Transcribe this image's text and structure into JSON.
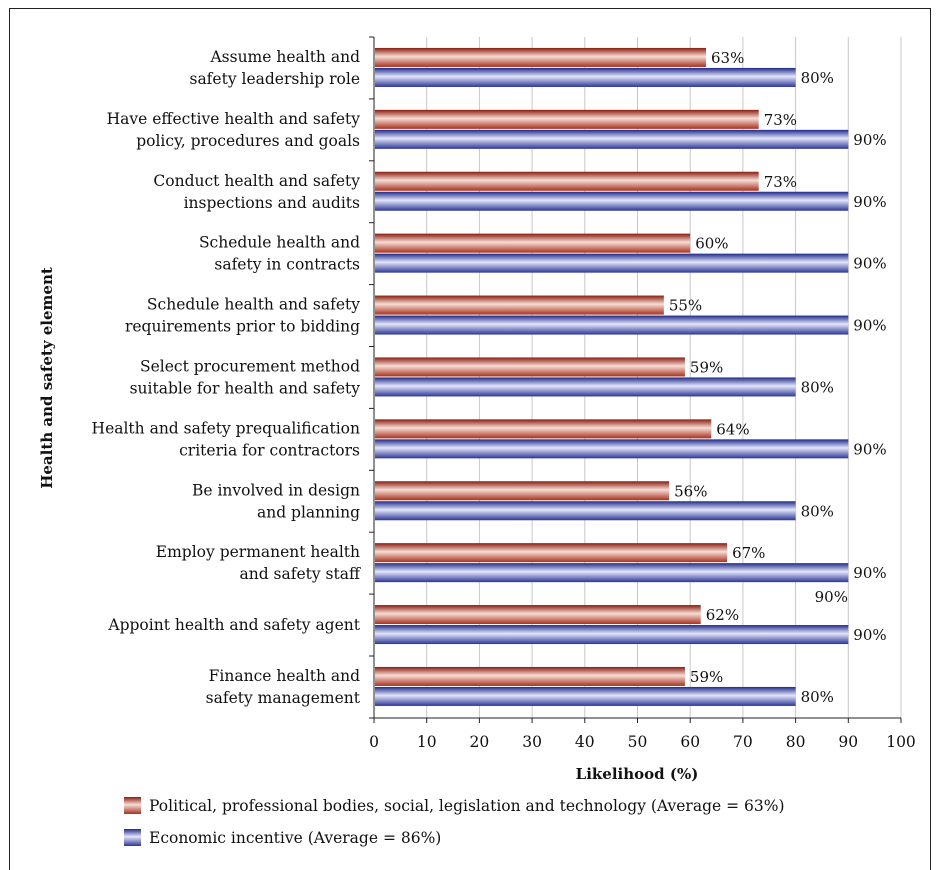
{
  "chart_data": {
    "type": "bar",
    "orientation": "horizontal",
    "categories": [
      [
        "Assume health and",
        "safety leadership role"
      ],
      [
        "Have effective health and safety",
        "policy, procedures and goals"
      ],
      [
        "Conduct health and safety",
        "inspections and audits"
      ],
      [
        "Schedule health and",
        "safety in contracts"
      ],
      [
        "Schedule health and safety",
        "requirements prior to bidding"
      ],
      [
        "Select procurement method",
        "suitable for health and safety"
      ],
      [
        "Health and safety prequalification",
        "criteria for contractors"
      ],
      [
        "Be involved in design",
        "and planning"
      ],
      [
        "Employ permanent health",
        "and safety staff"
      ],
      [
        "Appoint health and safety agent"
      ],
      [
        "Finance health and",
        "safety management"
      ]
    ],
    "series": [
      {
        "name": "Political, professional bodies, social, legislation and technology (Average = 63%)",
        "color": "#c0402a",
        "values": [
          63,
          73,
          73,
          60,
          55,
          59,
          64,
          56,
          67,
          62,
          59
        ],
        "labels": [
          "63%",
          "73%",
          "73%",
          "60%",
          "55%",
          "59%",
          "64%",
          "56%",
          "67%",
          "62%",
          "59%"
        ]
      },
      {
        "name": "Economic incentive (Average = 86%)",
        "color": "#3a45a8",
        "values": [
          80,
          90,
          90,
          90,
          90,
          80,
          90,
          80,
          90,
          90,
          80
        ],
        "labels": [
          "80%",
          "90%",
          "90%",
          "90%",
          "90%",
          "80%",
          "90%",
          "80%",
          "90%",
          "90%",
          "80%"
        ]
      }
    ],
    "stray_labels": [
      {
        "category_index": 9,
        "value": 90,
        "text": "90%"
      }
    ],
    "xlabel": "Likelihood (%)",
    "ylabel": "Health and safety element",
    "xlim": [
      0,
      100
    ],
    "xticks": [
      "0",
      "10",
      "20",
      "30",
      "40",
      "50",
      "60",
      "70",
      "80",
      "90",
      "100"
    ],
    "grid": true,
    "legend_position": "bottom"
  }
}
